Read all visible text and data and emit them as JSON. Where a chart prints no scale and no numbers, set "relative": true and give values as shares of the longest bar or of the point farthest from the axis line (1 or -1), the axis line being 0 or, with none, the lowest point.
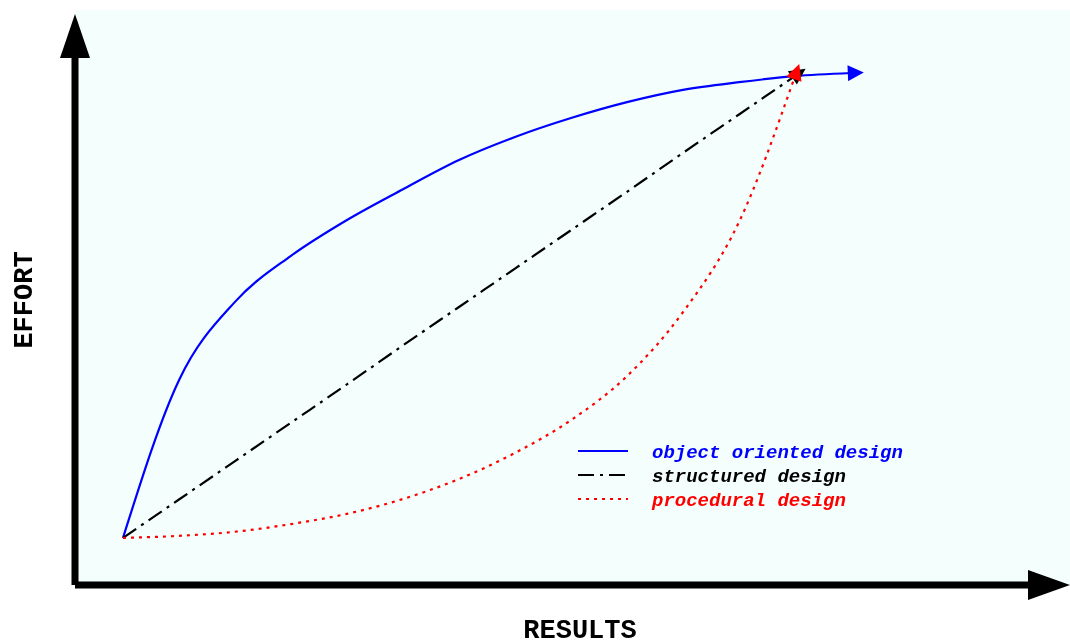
{
  "chart_data": {
    "type": "line",
    "relative": true,
    "xlabel": "RESULTS",
    "ylabel": "EFFORT",
    "categories": [
      null,
      null,
      null,
      null,
      null,
      null,
      null,
      null,
      null,
      null,
      null,
      null,
      null,
      null
    ],
    "legend": "bottom right",
    "series": [
      {
        "name": "object oriented design",
        "color": "#0000ff",
        "line_style": "solid",
        "values": [
          0.092,
          0.4,
          0.553,
          0.643,
          0.713,
          0.773,
          0.83,
          0.875,
          0.912,
          0.943,
          0.967,
          0.982,
          0.994,
          1
        ]
      },
      {
        "name": "structured design",
        "color": "#000000",
        "line_style": "dashed",
        "values": [
          0.092,
          0.167,
          0.242,
          0.317,
          0.392,
          0.468,
          0.543,
          0.618,
          0.693,
          0.768,
          0.844,
          0.919,
          0.994,
          null
        ]
      },
      {
        "name": "procedural design",
        "color": "#ff0000",
        "line_style": "dotted",
        "values": [
          0.092,
          0.096,
          0.104,
          0.119,
          0.139,
          0.168,
          0.207,
          0.258,
          0.322,
          0.408,
          0.533,
          0.709,
          0.994,
          null
        ]
      }
    ]
  }
}
